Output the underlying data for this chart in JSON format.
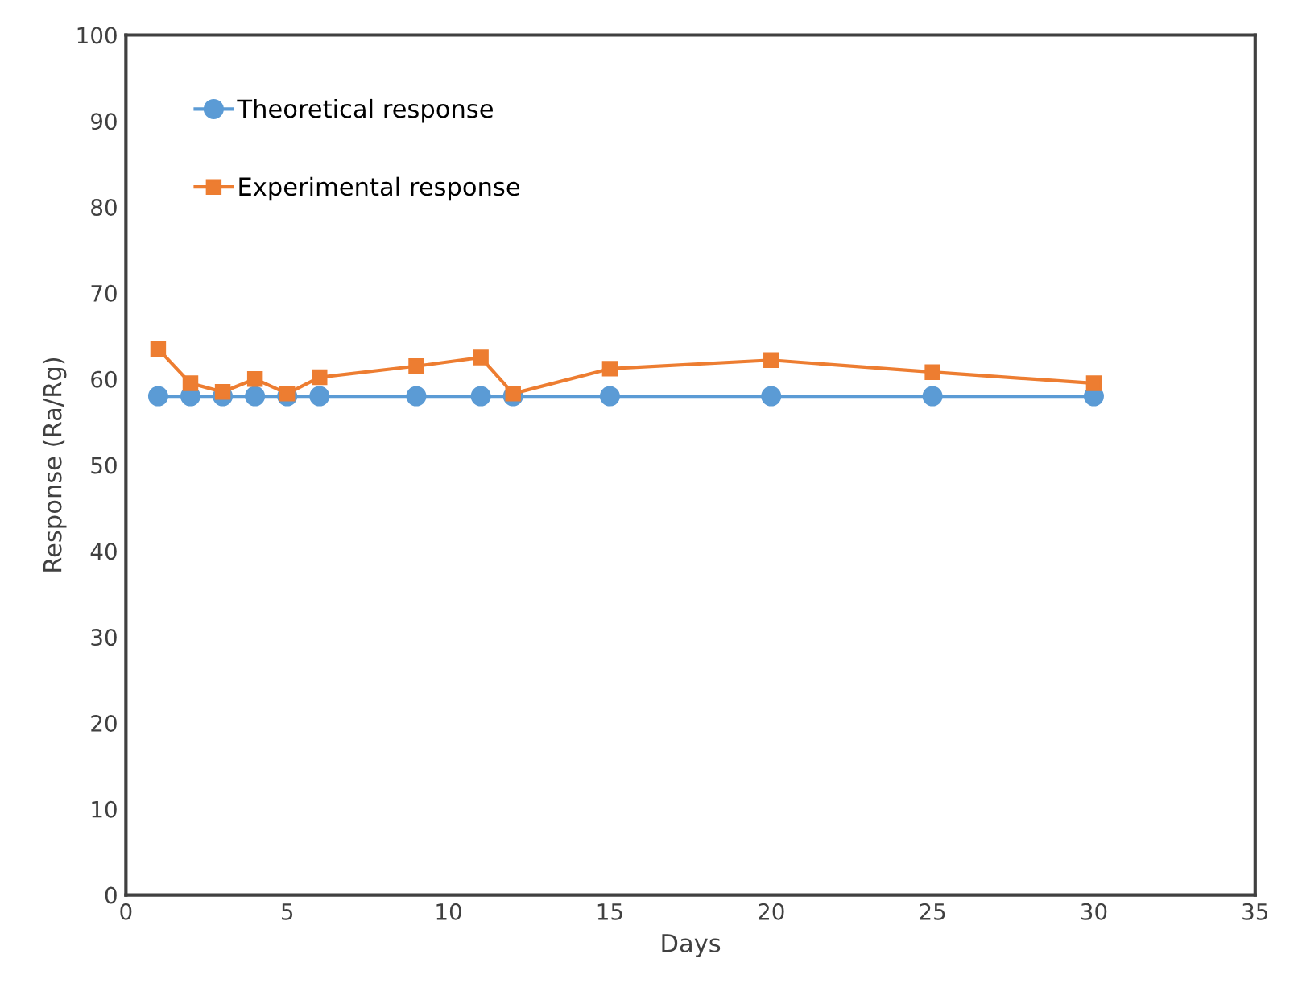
{
  "chart_data": {
    "type": "line",
    "xlabel": "Days",
    "ylabel": "Response (Ra/Rg)",
    "x": [
      1,
      2,
      3,
      4,
      5,
      6,
      9,
      11,
      12,
      15,
      20,
      25,
      30
    ],
    "series": [
      {
        "name": "Theoretical response",
        "color": "#5b9bd5",
        "marker": "circle",
        "values": [
          58,
          58,
          58,
          58,
          58,
          58,
          58,
          58,
          58,
          58,
          58,
          58,
          58
        ]
      },
      {
        "name": "Experimental response",
        "color": "#ed7d31",
        "marker": "square",
        "values": [
          63.5,
          59.5,
          58.5,
          60,
          58.3,
          60.2,
          61.5,
          62.5,
          58.3,
          61.2,
          62.2,
          60.8,
          59.5
        ]
      }
    ],
    "xlim": [
      0,
      35
    ],
    "xticks": [
      0,
      5,
      10,
      15,
      20,
      25,
      30,
      35
    ],
    "ylim": [
      0,
      100
    ],
    "yticks": [
      0,
      10,
      20,
      30,
      40,
      50,
      60,
      70,
      80,
      90,
      100
    ],
    "grid": false,
    "legend": "top left",
    "line_style": "solid"
  }
}
